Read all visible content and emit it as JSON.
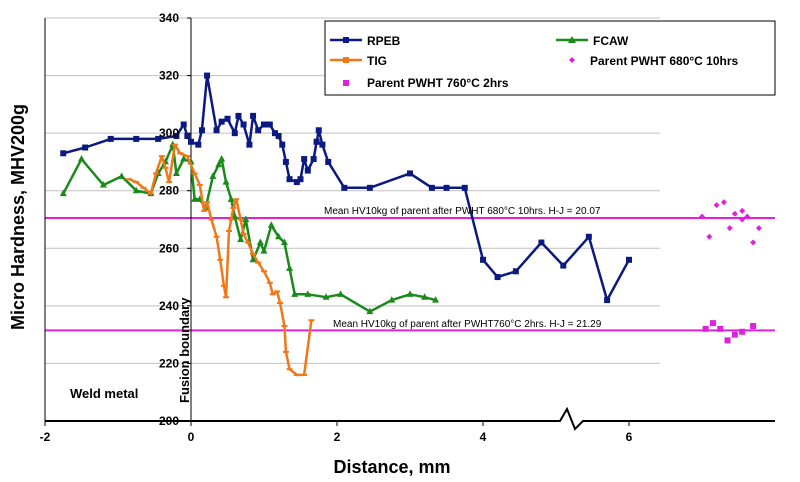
{
  "chart_data": {
    "type": "line",
    "xlabel": "Distance, mm",
    "ylabel": "Micro Hardness, MHV200g",
    "xlim": [
      -2,
      8
    ],
    "ylim": [
      200,
      340
    ],
    "x_ticks": [
      "-2",
      "0",
      "2",
      "4",
      "6"
    ],
    "y_ticks": [
      "200",
      "220",
      "240",
      "260",
      "280",
      "300",
      "320",
      "340"
    ],
    "grid": "horizontal",
    "legend_position": "top-right",
    "series": [
      {
        "name": "RPEB",
        "color": "#0a1a80",
        "marker": "square",
        "points": [
          [
            -1.75,
            293
          ],
          [
            -1.45,
            295
          ],
          [
            -1.1,
            298
          ],
          [
            -0.75,
            298
          ],
          [
            -0.45,
            298
          ],
          [
            -0.2,
            299
          ],
          [
            -0.1,
            303
          ],
          [
            -0.05,
            299
          ],
          [
            0.0,
            297
          ],
          [
            0.1,
            296
          ],
          [
            0.15,
            301
          ],
          [
            0.22,
            320
          ],
          [
            0.35,
            301
          ],
          [
            0.42,
            304
          ],
          [
            0.5,
            305
          ],
          [
            0.6,
            300
          ],
          [
            0.65,
            306
          ],
          [
            0.72,
            303
          ],
          [
            0.8,
            296
          ],
          [
            0.85,
            306
          ],
          [
            0.92,
            301
          ],
          [
            1.0,
            303
          ],
          [
            1.08,
            303
          ],
          [
            1.15,
            300
          ],
          [
            1.2,
            299
          ],
          [
            1.25,
            296
          ],
          [
            1.3,
            290
          ],
          [
            1.35,
            284
          ],
          [
            1.45,
            283
          ],
          [
            1.5,
            284
          ],
          [
            1.55,
            291
          ],
          [
            1.6,
            287
          ],
          [
            1.68,
            291
          ],
          [
            1.72,
            297
          ],
          [
            1.75,
            301
          ],
          [
            1.8,
            296
          ],
          [
            1.88,
            290
          ],
          [
            2.1,
            281
          ],
          [
            2.45,
            281
          ],
          [
            3.0,
            286
          ],
          [
            3.3,
            281
          ],
          [
            3.5,
            281
          ],
          [
            3.75,
            281
          ],
          [
            4.0,
            256
          ],
          [
            4.2,
            250
          ],
          [
            4.45,
            252
          ],
          [
            4.8,
            262
          ],
          [
            5.1,
            254
          ],
          [
            5.45,
            264
          ],
          [
            5.7,
            242
          ],
          [
            6.0,
            256
          ]
        ]
      },
      {
        "name": "FCAW",
        "color": "#1a8a1a",
        "marker": "triangle",
        "points": [
          [
            -1.75,
            279
          ],
          [
            -1.5,
            291
          ],
          [
            -1.2,
            282
          ],
          [
            -0.95,
            285
          ],
          [
            -0.75,
            280
          ],
          [
            -0.55,
            279
          ],
          [
            -0.45,
            286
          ],
          [
            -0.35,
            290
          ],
          [
            -0.25,
            296
          ],
          [
            -0.2,
            286
          ],
          [
            -0.1,
            291
          ],
          [
            0.0,
            290
          ],
          [
            0.05,
            277
          ],
          [
            0.12,
            277
          ],
          [
            0.2,
            274
          ],
          [
            0.3,
            285
          ],
          [
            0.38,
            289
          ],
          [
            0.42,
            291
          ],
          [
            0.48,
            283
          ],
          [
            0.55,
            277
          ],
          [
            0.6,
            271
          ],
          [
            0.68,
            263
          ],
          [
            0.75,
            270
          ],
          [
            0.85,
            256
          ],
          [
            0.95,
            262
          ],
          [
            1.0,
            259
          ],
          [
            1.1,
            268
          ],
          [
            1.2,
            264
          ],
          [
            1.28,
            262
          ],
          [
            1.35,
            253
          ],
          [
            1.42,
            244
          ],
          [
            1.6,
            244
          ],
          [
            1.85,
            243
          ],
          [
            2.05,
            244
          ],
          [
            2.45,
            238
          ],
          [
            2.75,
            242
          ],
          [
            3.0,
            244
          ],
          [
            3.2,
            243
          ],
          [
            3.35,
            242
          ]
        ]
      },
      {
        "name": "TIG",
        "color": "#f07818",
        "marker": "dash",
        "points": [
          [
            -0.85,
            284
          ],
          [
            -0.75,
            283
          ],
          [
            -0.65,
            281
          ],
          [
            -0.55,
            279
          ],
          [
            -0.48,
            286
          ],
          [
            -0.4,
            292
          ],
          [
            -0.35,
            288
          ],
          [
            -0.3,
            283
          ],
          [
            -0.22,
            296
          ],
          [
            -0.15,
            293
          ],
          [
            -0.05,
            292
          ],
          [
            0.05,
            286
          ],
          [
            0.12,
            282
          ],
          [
            0.18,
            273
          ],
          [
            0.22,
            276
          ],
          [
            0.28,
            270
          ],
          [
            0.35,
            264
          ],
          [
            0.4,
            256
          ],
          [
            0.45,
            247
          ],
          [
            0.48,
            243
          ],
          [
            0.52,
            266
          ],
          [
            0.55,
            270
          ],
          [
            0.58,
            274
          ],
          [
            0.62,
            277
          ],
          [
            0.68,
            270
          ],
          [
            0.72,
            265
          ],
          [
            0.78,
            262
          ],
          [
            0.85,
            258
          ],
          [
            0.92,
            255
          ],
          [
            1.0,
            252
          ],
          [
            1.08,
            248
          ],
          [
            1.12,
            244
          ],
          [
            1.18,
            245
          ],
          [
            1.22,
            241
          ],
          [
            1.28,
            233
          ],
          [
            1.3,
            224
          ],
          [
            1.35,
            218
          ],
          [
            1.45,
            216
          ],
          [
            1.55,
            216
          ],
          [
            1.65,
            235
          ]
        ]
      },
      {
        "name": "Parent PWHT 680°C 10hrs",
        "color": "#e020e0",
        "marker": "diamond",
        "style": "scatter",
        "points": [
          [
            7.0,
            271
          ],
          [
            7.1,
            264
          ],
          [
            7.2,
            275
          ],
          [
            7.3,
            276
          ],
          [
            7.38,
            267
          ],
          [
            7.45,
            272
          ],
          [
            7.55,
            270
          ],
          [
            7.62,
            271
          ],
          [
            7.7,
            262
          ],
          [
            7.78,
            267
          ],
          [
            7.55,
            273
          ]
        ]
      },
      {
        "name": "Parent PWHT 760°C 2hrs",
        "color": "#e020e0",
        "marker": "square",
        "style": "scatter",
        "points": [
          [
            7.05,
            232
          ],
          [
            7.15,
            234
          ],
          [
            7.25,
            232
          ],
          [
            7.35,
            228
          ],
          [
            7.45,
            230
          ],
          [
            7.55,
            231
          ],
          [
            7.7,
            233
          ]
        ]
      }
    ],
    "reference_lines": [
      {
        "y": 270.5,
        "color": "#e020e0",
        "label": "Mean HV10kg of parent after PWHT 680°C 10hrs. H-J = 20.07"
      },
      {
        "y": 231.5,
        "color": "#e020e0",
        "label": "Mean HV10kg of parent after PWHT760°C 2hrs. H-J = 21.29"
      }
    ],
    "annotations": {
      "weld_metal": "Weld metal",
      "fusion_boundary": "Fusion boundary"
    }
  }
}
